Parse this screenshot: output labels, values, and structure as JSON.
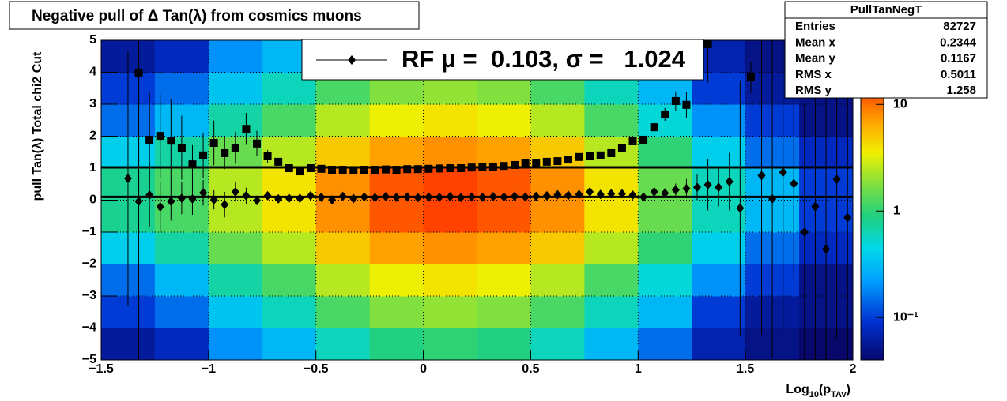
{
  "chart_data": {
    "type": "profile2d",
    "title": "Negative pull of Δ Tan(λ) from cosmics muons",
    "y_label": "pull Tan(λ)  Total chi2 Cut",
    "x_label_parts": [
      "Log",
      "10",
      "(p",
      "TAv",
      ")"
    ],
    "xlim": [
      -1.5,
      2
    ],
    "ylim": [
      -5,
      5
    ],
    "xticks": [
      {
        "value": -1.5,
        "label": "−1.5"
      },
      {
        "value": -1,
        "label": "−1"
      },
      {
        "value": -0.5,
        "label": "−0.5"
      },
      0,
      0.5,
      1,
      1.5,
      2
    ],
    "yticks": [
      {
        "value": -5,
        "label": "−5"
      },
      {
        "value": -4,
        "label": "−4"
      },
      {
        "value": -3,
        "label": "−3"
      },
      {
        "value": -2,
        "label": "−2"
      },
      {
        "value": -1,
        "label": "−1"
      },
      0,
      1,
      2,
      3,
      4,
      5
    ],
    "grid": true,
    "zlim": [
      0.04,
      40
    ],
    "zlog": true,
    "zticks": [
      {
        "value": 0.1,
        "label": "10⁻¹"
      },
      1,
      10
    ],
    "heatmap": {
      "xbins": [
        -1.5,
        -1.25,
        -1,
        -0.75,
        -0.5,
        -0.25,
        0,
        0.25,
        0.5,
        0.75,
        1,
        1.25,
        1.5,
        1.75,
        2
      ],
      "ybins": [
        -5,
        -4,
        -3,
        -2,
        -1,
        0,
        1,
        2,
        3,
        4,
        5
      ],
      "z": [
        [
          0.06,
          0.08,
          0.2,
          0.3,
          0.6,
          0.9,
          1,
          0.9,
          0.6,
          0.3,
          0.15,
          0.07,
          0.05,
          0.04
        ],
        [
          0.1,
          0.15,
          0.35,
          0.6,
          1.2,
          1.8,
          2,
          1.8,
          1.2,
          0.6,
          0.3,
          0.1,
          0.06,
          0.05
        ],
        [
          0.15,
          0.3,
          0.7,
          1.2,
          2.5,
          3.5,
          4,
          3.5,
          2.5,
          1.2,
          0.5,
          0.2,
          0.1,
          0.05
        ],
        [
          0.4,
          0.7,
          1.5,
          2.5,
          5,
          7,
          8,
          7,
          5,
          2.5,
          1,
          0.4,
          0.15,
          0.08
        ],
        [
          0.8,
          1.2,
          2.5,
          4,
          8,
          12,
          14,
          12,
          8,
          4,
          1.5,
          0.6,
          0.3,
          0.1
        ],
        [
          0.8,
          1.2,
          2.5,
          4,
          8,
          12,
          14,
          12,
          8,
          4,
          1.5,
          0.6,
          0.3,
          0.1
        ],
        [
          0.4,
          0.7,
          1.5,
          2.5,
          5,
          7,
          8,
          7,
          5,
          2.5,
          1,
          0.4,
          0.15,
          0.08
        ],
        [
          0.15,
          0.3,
          0.7,
          1.2,
          2.5,
          3.5,
          4,
          3.5,
          2.5,
          1.2,
          0.5,
          0.2,
          0.1,
          0.05
        ],
        [
          0.1,
          0.15,
          0.35,
          0.6,
          1.2,
          1.8,
          2,
          1.8,
          1.2,
          0.6,
          0.3,
          0.1,
          0.06,
          0.05
        ],
        [
          0.06,
          0.08,
          0.2,
          0.3,
          0.6,
          0.9,
          1,
          0.9,
          0.6,
          0.3,
          0.15,
          0.07,
          0.05,
          0.04
        ]
      ]
    },
    "x": [
      -1.375,
      -1.325,
      -1.275,
      -1.225,
      -1.175,
      -1.125,
      -1.075,
      -1.025,
      -0.975,
      -0.925,
      -0.875,
      -0.825,
      -0.775,
      -0.725,
      -0.675,
      -0.625,
      -0.575,
      -0.525,
      -0.475,
      -0.425,
      -0.375,
      -0.325,
      -0.275,
      -0.225,
      -0.175,
      -0.125,
      -0.075,
      -0.025,
      0.025,
      0.075,
      0.125,
      0.175,
      0.225,
      0.275,
      0.325,
      0.375,
      0.425,
      0.475,
      0.525,
      0.575,
      0.625,
      0.675,
      0.725,
      0.775,
      0.825,
      0.875,
      0.925,
      0.975,
      1.025,
      1.075,
      1.125,
      1.175,
      1.225,
      1.275,
      1.325,
      1.375,
      1.425,
      1.475,
      1.525,
      1.575,
      1.625,
      1.675,
      1.725,
      1.775,
      1.825,
      1.875,
      1.925,
      1.975
    ],
    "series": [
      {
        "marker": "square",
        "color": "#000000",
        "values": [
          null,
          3.99,
          1.89,
          2.01,
          1.86,
          1.64,
          1.12,
          1.4,
          1.79,
          1.47,
          1.64,
          2.23,
          1.77,
          1.37,
          1.2,
          1.0,
          0.9,
          1.0,
          0.98,
          0.95,
          0.95,
          0.94,
          0.95,
          0.95,
          0.96,
          0.95,
          0.97,
          0.97,
          0.98,
          0.99,
          1.0,
          1.0,
          1.02,
          1.03,
          1.05,
          1.07,
          1.1,
          1.15,
          1.17,
          1.2,
          1.22,
          1.27,
          1.35,
          1.37,
          1.4,
          1.47,
          1.62,
          1.84,
          1.89,
          2.28,
          2.68,
          3.1,
          2.98,
          null,
          4.88,
          null,
          null,
          null,
          3.84,
          null,
          null,
          null,
          null,
          null,
          null,
          null,
          null,
          null
        ],
        "errors": [
          null,
          4,
          1.5,
          1.3,
          1.3,
          1.0,
          0.6,
          0.7,
          0.7,
          0.5,
          0.5,
          0.5,
          0.4,
          0.2,
          0.1,
          0.06,
          0.05,
          0.03,
          0.03,
          0.03,
          0.03,
          0.03,
          0.03,
          0.03,
          0.03,
          0.03,
          0.03,
          0.03,
          0.03,
          0.03,
          0.03,
          0.03,
          0.03,
          0.03,
          0.03,
          0.03,
          0.03,
          0.03,
          0.03,
          0.03,
          0.03,
          0.03,
          0.03,
          0.03,
          0.03,
          0.05,
          0.08,
          0.1,
          0.12,
          0.15,
          0.2,
          0.3,
          0.4,
          null,
          1.2,
          null,
          null,
          null,
          0.5,
          null,
          null,
          null,
          null,
          null,
          null,
          null,
          null,
          null
        ]
      },
      {
        "marker": "diamond",
        "color": "#000000",
        "values": [
          0.68,
          -0.04,
          0.16,
          -0.21,
          -0.04,
          0.06,
          0.04,
          0.23,
          0.01,
          -0.14,
          0.26,
          0.14,
          -0.01,
          0.14,
          0.04,
          0.06,
          0.06,
          0.14,
          0.09,
          0.01,
          0.12,
          0.05,
          0.1,
          0.08,
          0.11,
          0.09,
          0.1,
          0.08,
          0.1,
          0.09,
          0.11,
          0.08,
          0.1,
          0.09,
          0.11,
          0.1,
          0.12,
          0.1,
          0.12,
          0.14,
          0.17,
          0.15,
          0.18,
          0.26,
          0.18,
          0.2,
          0.2,
          0.16,
          0.1,
          0.26,
          0.22,
          0.32,
          0.36,
          0.4,
          0.48,
          0.4,
          0.58,
          -0.25,
          null,
          0.77,
          0.04,
          0.87,
          0.52,
          -1.0,
          -0.2,
          -1.53,
          0.65,
          -0.55
        ],
        "errors": [
          4,
          5,
          1,
          0.8,
          0.6,
          0.5,
          0.5,
          0.4,
          0.3,
          0.4,
          0.3,
          0.25,
          0.15,
          0.12,
          0.08,
          0.06,
          0.05,
          0.03,
          0.03,
          0.03,
          0.03,
          0.03,
          0.03,
          0.03,
          0.03,
          0.03,
          0.03,
          0.03,
          0.03,
          0.03,
          0.03,
          0.03,
          0.03,
          0.03,
          0.03,
          0.03,
          0.03,
          0.03,
          0.03,
          0.03,
          0.03,
          0.03,
          0.03,
          0.03,
          0.03,
          0.03,
          0.05,
          0.06,
          0.08,
          0.1,
          0.15,
          0.2,
          0.3,
          0.4,
          0.8,
          0.6,
          0.9,
          4,
          null,
          5,
          5,
          5,
          3,
          4,
          5,
          5,
          5,
          5
        ]
      }
    ],
    "hlines": [
      0.103,
      1.024
    ],
    "legend": {
      "label": "RF μ =  0.103, σ =   1.024"
    },
    "stats": {
      "title": "PullTanNegT",
      "rows": [
        {
          "label": "Entries",
          "value": 82727
        },
        {
          "label": "Mean x",
          "value": 0.2344
        },
        {
          "label": "Mean y",
          "value": 0.1167
        },
        {
          "label": "RMS x",
          "value": 0.5011
        },
        {
          "label": "RMS y",
          "value": 1.258
        }
      ]
    }
  }
}
